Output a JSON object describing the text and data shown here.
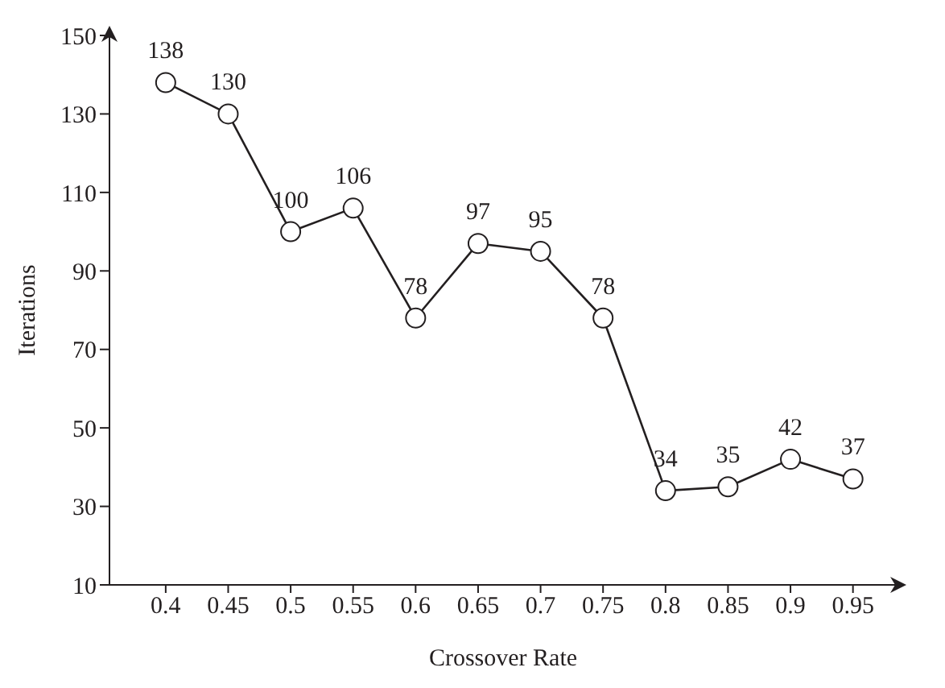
{
  "chart_data": {
    "type": "line",
    "xlabel": "Crossover Rate",
    "ylabel": "Iterations",
    "x": [
      0.4,
      0.45,
      0.5,
      0.55,
      0.6,
      0.65,
      0.7,
      0.75,
      0.8,
      0.85,
      0.9,
      0.95
    ],
    "series": [
      {
        "color": "#231f20",
        "values": [
          138,
          130,
          100,
          106,
          78,
          97,
          95,
          78,
          34,
          35,
          42,
          37
        ]
      }
    ],
    "xlim": [
      0.355,
      0.985
    ],
    "xticks": [
      0.4,
      0.45,
      0.5,
      0.55,
      0.6,
      0.65,
      0.7,
      0.75,
      0.8,
      0.85,
      0.9,
      0.95
    ],
    "ylim": [
      10,
      150
    ],
    "yticks": [
      10,
      30,
      50,
      70,
      90,
      110,
      130,
      150
    ],
    "marker": "circle",
    "line_style": "solid",
    "data_labels": true
  }
}
